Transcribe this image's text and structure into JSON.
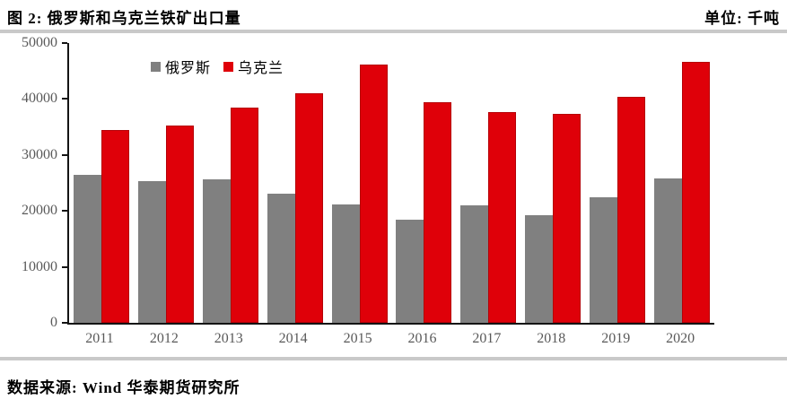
{
  "header": {
    "title": "图 2: 俄罗斯和乌克兰铁矿出口量",
    "unit_label": "单位: 千吨"
  },
  "footer": {
    "source": "数据来源: Wind 华泰期货研究所"
  },
  "colors": {
    "russia_gray": "#808080",
    "ukraine_red": "#df0009",
    "axis": "#141414",
    "tick_label": "#595959",
    "divider": "#c9c9c9"
  },
  "chart_data": {
    "type": "bar",
    "title": "俄罗斯和乌克兰铁矿出口量",
    "unit": "千吨",
    "categories": [
      "2011",
      "2012",
      "2013",
      "2014",
      "2015",
      "2016",
      "2017",
      "2018",
      "2019",
      "2020"
    ],
    "series": [
      {
        "name": "俄罗斯",
        "color": "#808080",
        "values": [
          26500,
          25400,
          25600,
          23000,
          21100,
          18500,
          21000,
          19300,
          22400,
          25800
        ]
      },
      {
        "name": "乌克兰",
        "color": "#df0009",
        "values": [
          34500,
          35300,
          38400,
          41000,
          46100,
          39400,
          37600,
          37300,
          40400,
          46700
        ]
      }
    ],
    "ylim": [
      0,
      50000
    ],
    "yticks": [
      0,
      10000,
      20000,
      30000,
      40000,
      50000
    ],
    "xlabel": "",
    "ylabel": "",
    "legend_position": "top-left-of-center",
    "grid": false
  }
}
